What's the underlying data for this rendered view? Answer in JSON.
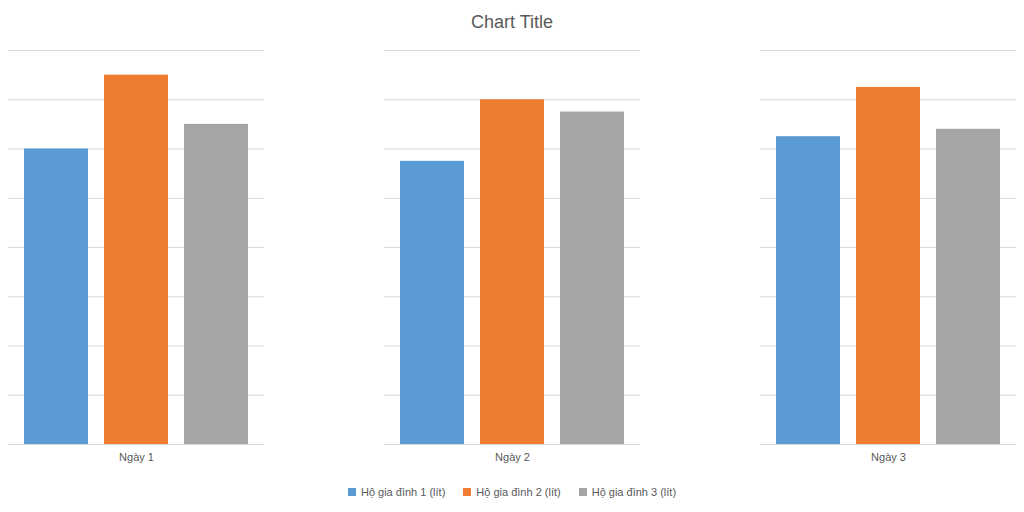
{
  "chart_data": {
    "type": "bar",
    "title": "Chart Title",
    "categories": [
      "Ngày 1",
      "Ngày 2",
      "Ngày 3"
    ],
    "series": [
      {
        "name": "Hộ gia đình 1 (lít)",
        "color": "#5b9bd5",
        "values": [
          120,
          115,
          125
        ]
      },
      {
        "name": "Hộ gia đình 2 (lít)",
        "color": "#ed7d31",
        "values": [
          150,
          140,
          145
        ]
      },
      {
        "name": "Hộ gia đình 3 (lít)",
        "color": "#a5a5a5",
        "values": [
          130,
          135,
          128
        ]
      }
    ],
    "ylim": [
      0,
      160
    ],
    "yticks": [
      0,
      20,
      40,
      60,
      80,
      100,
      120,
      140,
      160
    ],
    "grid": true,
    "legend": "bottom",
    "tick_labels": "x"
  }
}
